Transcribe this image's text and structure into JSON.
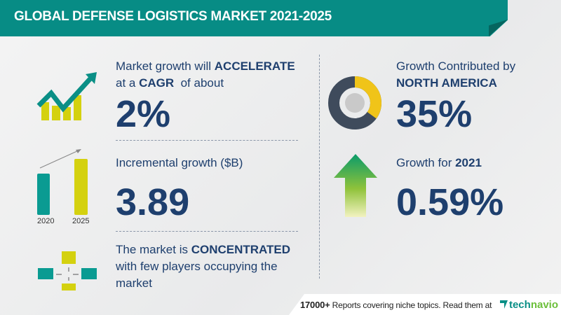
{
  "header": {
    "title": "GLOBAL DEFENSE LOGISTICS MARKET 2021-2025"
  },
  "cagr": {
    "line1_prefix": "Market growth will ",
    "line1_bold": "ACCELERATE",
    "line2_prefix": "at a ",
    "line2_bold": "CAGR",
    "line2_suffix": "  of about",
    "value": "2%",
    "icon": "growth-chart-icon"
  },
  "incremental": {
    "label": "Incremental growth ($B)",
    "value": "3.89",
    "bar_labels": [
      "2020",
      "2025"
    ],
    "icon": "bar-comparison-icon"
  },
  "concentration": {
    "line1_prefix": "The market is ",
    "line1_bold": "CONCENTRATED",
    "line2": "with few players occupying the",
    "line3": "market",
    "icon": "buildings-converge-icon"
  },
  "region": {
    "line1": "Growth Contributed by",
    "line2": "NORTH AMERICA",
    "value": "35%",
    "share": 0.35,
    "icon": "donut-chart-icon"
  },
  "yoy": {
    "label_prefix": "Growth for ",
    "label_bold": "2021",
    "value": "0.59%",
    "icon": "up-arrow-icon"
  },
  "footer": {
    "count": "17000+",
    "text": " Reports covering niche topics. Read them at",
    "logo_a": "tech",
    "logo_b": "navio"
  },
  "colors": {
    "teal": "#078c85",
    "yellow": "#d4d10f",
    "navy": "#1e3f6e"
  }
}
